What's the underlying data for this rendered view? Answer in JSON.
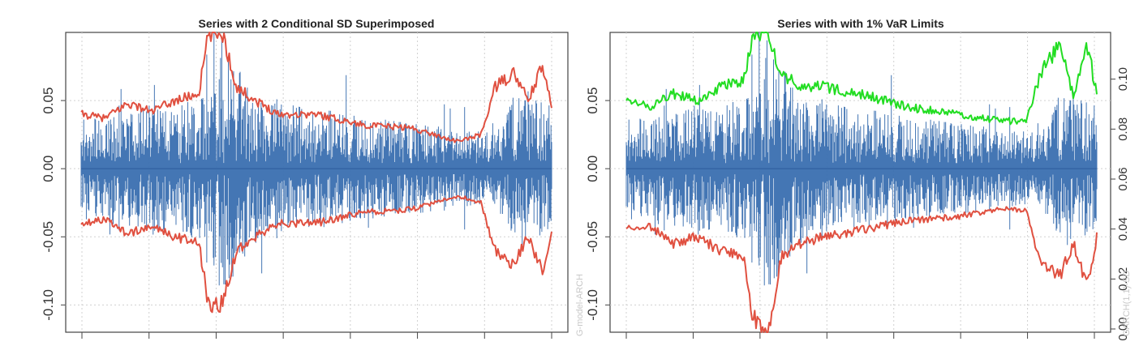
{
  "chart_data": [
    {
      "type": "line",
      "title": "Series with 2 Conditional SD Superimposed",
      "xlabel": "",
      "ylabel": "",
      "ylim": [
        -0.12,
        0.1
      ],
      "yticks": [
        -0.1,
        -0.05,
        0.0,
        0.05
      ],
      "ytick_labels": [
        "-0.10",
        "-0.05",
        "0.00",
        "0.05"
      ],
      "grid": true,
      "series": [
        {
          "color": "#3a6fb0",
          "band_x": [
            0,
            0.1,
            0.2,
            0.27,
            0.3,
            0.35,
            0.4,
            0.5,
            0.6,
            0.7,
            0.8,
            0.88,
            0.92,
            0.96,
            1.0
          ],
          "band_y": [
            0.034,
            0.038,
            0.042,
            0.052,
            0.095,
            0.06,
            0.045,
            0.04,
            0.035,
            0.03,
            0.025,
            0.022,
            0.05,
            0.06,
            0.04
          ]
        },
        {
          "color": "#e05040",
          "x": [
            0,
            0.05,
            0.1,
            0.15,
            0.2,
            0.25,
            0.27,
            0.3,
            0.33,
            0.37,
            0.42,
            0.5,
            0.6,
            0.7,
            0.8,
            0.85,
            0.88,
            0.92,
            0.95,
            0.98,
            1.0
          ],
          "y": [
            0.04,
            0.037,
            0.048,
            0.042,
            0.05,
            0.055,
            0.098,
            0.1,
            0.06,
            0.05,
            0.04,
            0.04,
            0.032,
            0.03,
            0.02,
            0.025,
            0.06,
            0.07,
            0.05,
            0.075,
            0.045
          ]
        },
        {
          "color": "#e05040",
          "x": [
            0,
            0.05,
            0.1,
            0.15,
            0.2,
            0.25,
            0.27,
            0.3,
            0.33,
            0.37,
            0.42,
            0.5,
            0.6,
            0.7,
            0.8,
            0.85,
            0.88,
            0.92,
            0.95,
            0.98,
            1.0
          ],
          "y": [
            -0.04,
            -0.037,
            -0.048,
            -0.042,
            -0.05,
            -0.055,
            -0.098,
            -0.1,
            -0.06,
            -0.05,
            -0.04,
            -0.04,
            -0.032,
            -0.03,
            -0.02,
            -0.025,
            -0.06,
            -0.07,
            -0.05,
            -0.075,
            -0.045
          ]
        }
      ]
    },
    {
      "type": "line",
      "title": "Series with with 1% VaR Limits",
      "xlabel": "",
      "ylabel": "",
      "ylim": [
        -0.12,
        0.1
      ],
      "yticks": [
        -0.1,
        -0.05,
        0.0,
        0.05
      ],
      "ytick_labels": [
        "-0.10",
        "-0.05",
        "0.00",
        "0.05"
      ],
      "y2lim": [
        0.0,
        0.12
      ],
      "y2ticks": [
        0.0,
        0.02,
        0.04,
        0.06,
        0.08,
        0.1
      ],
      "y2tick_labels": [
        "0.00",
        "0.02",
        "0.04",
        "0.06",
        "0.08",
        "0.10"
      ],
      "grid": true,
      "series": [
        {
          "color": "#3a6fb0",
          "band_x": [
            0,
            0.1,
            0.2,
            0.27,
            0.3,
            0.35,
            0.4,
            0.5,
            0.6,
            0.7,
            0.8,
            0.88,
            0.92,
            0.96,
            1.0
          ],
          "band_y": [
            0.034,
            0.038,
            0.042,
            0.052,
            0.095,
            0.06,
            0.045,
            0.04,
            0.035,
            0.03,
            0.025,
            0.022,
            0.05,
            0.06,
            0.04
          ]
        },
        {
          "color": "#22dd22",
          "x": [
            0,
            0.05,
            0.1,
            0.15,
            0.2,
            0.25,
            0.27,
            0.3,
            0.33,
            0.37,
            0.42,
            0.5,
            0.6,
            0.7,
            0.8,
            0.85,
            0.88,
            0.92,
            0.95,
            0.98,
            1.0
          ],
          "y": [
            0.05,
            0.045,
            0.055,
            0.05,
            0.06,
            0.065,
            0.1,
            0.1,
            0.07,
            0.06,
            0.06,
            0.055,
            0.045,
            0.04,
            0.035,
            0.035,
            0.07,
            0.09,
            0.055,
            0.09,
            0.055
          ]
        },
        {
          "color": "#e05040",
          "x": [
            0,
            0.05,
            0.1,
            0.15,
            0.2,
            0.25,
            0.27,
            0.3,
            0.33,
            0.37,
            0.42,
            0.5,
            0.6,
            0.7,
            0.8,
            0.85,
            0.88,
            0.92,
            0.95,
            0.98,
            1.0
          ],
          "y": [
            -0.045,
            -0.042,
            -0.055,
            -0.05,
            -0.06,
            -0.065,
            -0.11,
            -0.12,
            -0.065,
            -0.055,
            -0.05,
            -0.045,
            -0.038,
            -0.035,
            -0.03,
            -0.03,
            -0.07,
            -0.08,
            -0.055,
            -0.085,
            -0.05
          ]
        }
      ]
    }
  ],
  "watermark": {
    "left": "G-model-ARCH",
    "right": "GARCH(1,1)-SD"
  }
}
